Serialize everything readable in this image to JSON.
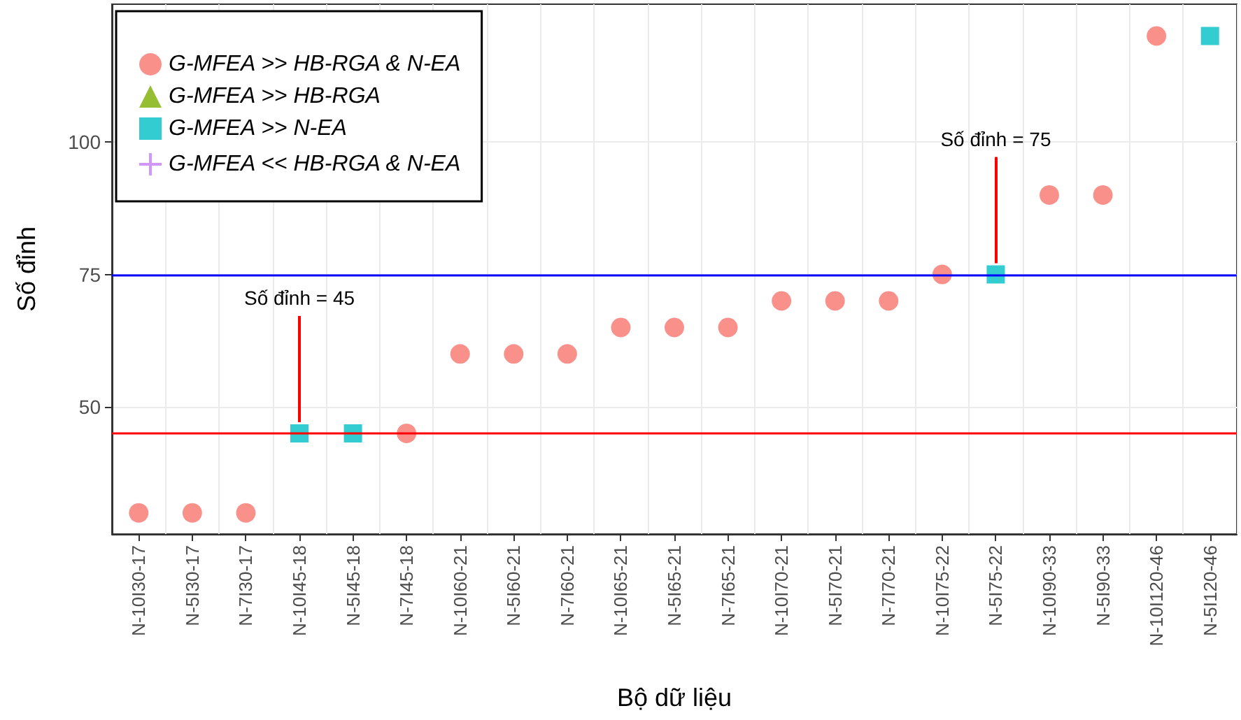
{
  "chart_data": {
    "type": "scatter",
    "xlabel": "Bộ dữ liệu",
    "ylabel": "Số đỉnh",
    "categories": [
      "N-10I30-17",
      "N-5I30-17",
      "N-7I30-17",
      "N-10I45-18",
      "N-5I45-18",
      "N-7I45-18",
      "N-10I60-21",
      "N-5I60-21",
      "N-7I60-21",
      "N-10I65-21",
      "N-5I65-21",
      "N-7I65-21",
      "N-10I70-21",
      "N-5I70-21",
      "N-7I70-21",
      "N-10I75-22",
      "N-5I75-22",
      "N-10I90-33",
      "N-5I90-33",
      "N-10I120-46",
      "N-5I120-46"
    ],
    "series": [
      {
        "name": "G-MFEA >> HB-RGA & N-EA",
        "color": "#f8766d",
        "marker": "circle",
        "values": [
          30,
          30,
          30,
          null,
          null,
          45,
          60,
          60,
          60,
          65,
          65,
          65,
          70,
          70,
          70,
          75,
          null,
          90,
          90,
          120,
          null
        ]
      },
      {
        "name": "G-MFEA >> HB-RGA",
        "color": "#7cae00",
        "marker": "triangle",
        "values": [
          null,
          null,
          null,
          null,
          null,
          null,
          null,
          null,
          null,
          null,
          null,
          null,
          null,
          null,
          null,
          null,
          null,
          null,
          null,
          null,
          null
        ]
      },
      {
        "name": "G-MFEA >> N-EA",
        "color": "#00bfc4",
        "marker": "square",
        "values": [
          null,
          null,
          null,
          45,
          45,
          null,
          null,
          null,
          null,
          null,
          null,
          null,
          null,
          null,
          null,
          null,
          75,
          null,
          null,
          null,
          120
        ]
      },
      {
        "name": "G-MFEA << HB-RGA & N-EA",
        "color": "#c77cff",
        "marker": "cross",
        "values": [
          null,
          null,
          null,
          null,
          null,
          null,
          null,
          null,
          null,
          null,
          null,
          null,
          null,
          null,
          null,
          null,
          null,
          null,
          null,
          null,
          null
        ]
      }
    ],
    "ylim": [
      26,
      126
    ],
    "yticks": [
      50,
      75,
      100
    ],
    "grid": true,
    "legend": "top left",
    "ref_lines": [
      {
        "axis": "y",
        "value": 75,
        "color": "#0000ff"
      },
      {
        "axis": "y",
        "value": 45,
        "color": "#ff0000"
      }
    ],
    "annotations": [
      {
        "text": "Số đỉnh = 45",
        "x": "N-10I45-18",
        "y": 45
      },
      {
        "text": "Số đỉnh = 75",
        "x": "N-5I75-22",
        "y": 75
      }
    ]
  }
}
